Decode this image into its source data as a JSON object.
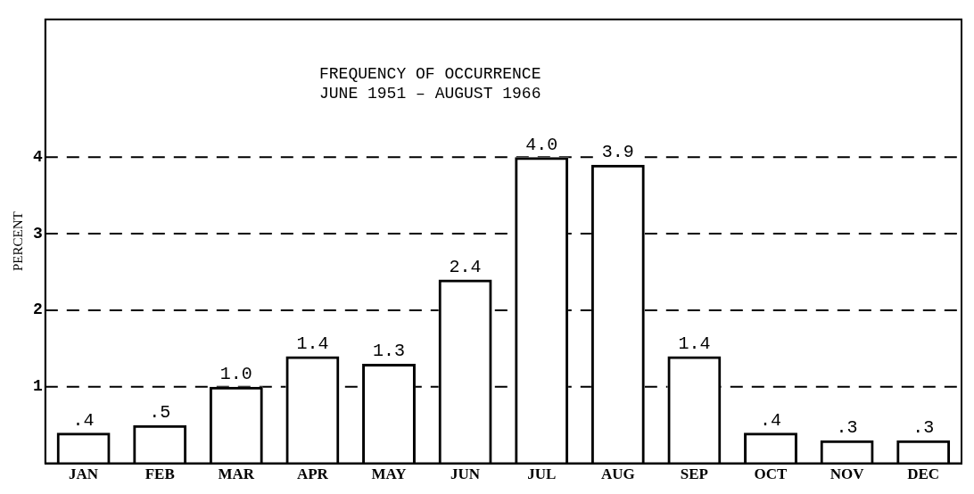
{
  "chart_data": {
    "type": "bar",
    "title": "FREQUENCY OF OCCURRENCE\nJUNE 1951 – AUGUST 1966",
    "ylabel": "PERCENT",
    "categories": [
      "JAN",
      "FEB",
      "MAR",
      "APR",
      "MAY",
      "JUN",
      "JUL",
      "AUG",
      "SEP",
      "OCT",
      "NOV",
      "DEC"
    ],
    "values": [
      0.4,
      0.5,
      1.0,
      1.4,
      1.3,
      2.4,
      4.0,
      3.9,
      1.4,
      0.4,
      0.3,
      0.3
    ],
    "value_labels": [
      ".4",
      ".5",
      "1.0",
      "1.4",
      "1.3",
      "2.4",
      "4.0",
      "3.9",
      "1.4",
      ".4",
      ".3",
      ".3"
    ],
    "color": "#000000",
    "ylim": [
      0,
      5.8
    ],
    "yticks": [
      1,
      2,
      3,
      4
    ],
    "grid": "y",
    "line_style": "dashed",
    "legend": false
  }
}
